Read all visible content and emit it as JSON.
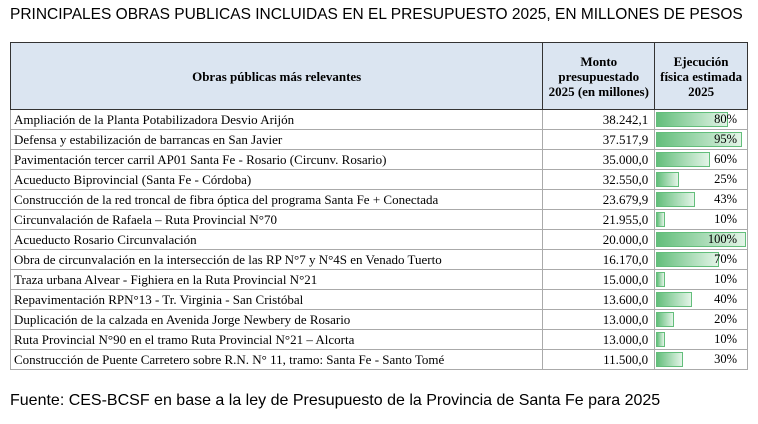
{
  "title": "PRINCIPALES OBRAS PUBLICAS INCLUIDAS EN EL PRESUPUESTO 2025, EN MILLONES DE PESOS",
  "table": {
    "headers": [
      "Obras públicas más relevantes",
      "Monto presupuestado 2025 (en millones)",
      "Ejecución física estimada 2025"
    ],
    "rows": [
      {
        "obra": "Ampliación de la Planta Potabilizadora Desvio Arijón",
        "monto": "38.242,1",
        "ejecucion": 80,
        "ejecucion_label": "80%"
      },
      {
        "obra": "Defensa y estabilización de barrancas en San Javier",
        "monto": "37.517,9",
        "ejecucion": 95,
        "ejecucion_label": "95%"
      },
      {
        "obra": "Pavimentación tercer carril AP01 Santa Fe - Rosario (Circunv. Rosario)",
        "monto": "35.000,0",
        "ejecucion": 60,
        "ejecucion_label": "60%"
      },
      {
        "obra": "Acueducto Biprovincial (Santa Fe - Córdoba)",
        "monto": "32.550,0",
        "ejecucion": 25,
        "ejecucion_label": "25%"
      },
      {
        "obra": "Construcción de la red troncal de fibra óptica del programa Santa Fe + Conectada",
        "monto": "23.679,9",
        "ejecucion": 43,
        "ejecucion_label": "43%"
      },
      {
        "obra": "Circunvalación de Rafaela – Ruta Provincial N°70",
        "monto": "21.955,0",
        "ejecucion": 10,
        "ejecucion_label": "10%"
      },
      {
        "obra": "Acueducto Rosario Circunvalación",
        "monto": "20.000,0",
        "ejecucion": 100,
        "ejecucion_label": "100%"
      },
      {
        "obra": "Obra de circunvalación en la intersección de las RP N°7 y N°4S en Venado Tuerto",
        "monto": "16.170,0",
        "ejecucion": 70,
        "ejecucion_label": "70%"
      },
      {
        "obra": "Traza urbana Alvear - Fighiera en la Ruta Provincial N°21",
        "monto": "15.000,0",
        "ejecucion": 10,
        "ejecucion_label": "10%"
      },
      {
        "obra": "Repavimentación RPN°13 - Tr. Virginia - San Cristóbal",
        "monto": "13.600,0",
        "ejecucion": 40,
        "ejecucion_label": "40%"
      },
      {
        "obra": "Duplicación de la calzada en Avenida Jorge Newbery de Rosario",
        "monto": "13.000,0",
        "ejecucion": 20,
        "ejecucion_label": "20%"
      },
      {
        "obra": "Ruta Provincial N°90 en el tramo Ruta Provincial N°21 – Alcorta",
        "monto": "13.000,0",
        "ejecucion": 10,
        "ejecucion_label": "10%"
      },
      {
        "obra": "Construcción de Puente Carretero sobre R.N. N° 11, tramo: Santa Fe - Santo Tomé",
        "monto": "11.500,0",
        "ejecucion": 30,
        "ejecucion_label": "30%"
      }
    ]
  },
  "source": "Fuente: CES-BCSF en base a la ley de Presupuesto de la Provincia de Santa Fe para 2025"
}
